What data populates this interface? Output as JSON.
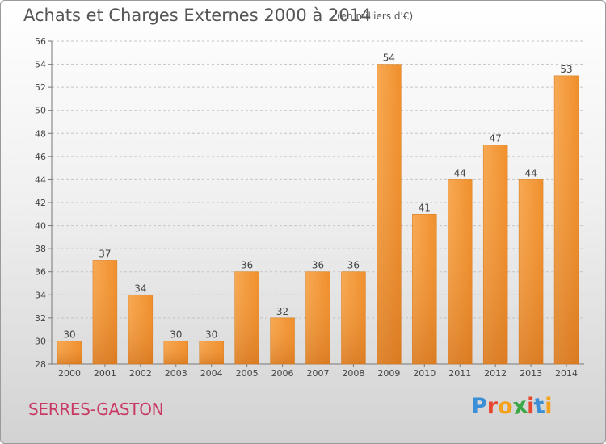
{
  "header": {
    "title": "Achats et Charges Externes 2000 à 2014",
    "unit": "(en milliers d'€)"
  },
  "footer": {
    "commune": "SERRES-GASTON",
    "logo": "Proxiti",
    "logo_colors": [
      "#3a8fd6",
      "#e8472f",
      "#f4a21c",
      "#3aa845",
      "#e8472f",
      "#3a8fd6",
      "#f4a21c"
    ]
  },
  "chart_data": {
    "type": "bar",
    "categories": [
      "2000",
      "2001",
      "2002",
      "2003",
      "2004",
      "2005",
      "2006",
      "2007",
      "2008",
      "2009",
      "2010",
      "2011",
      "2012",
      "2013",
      "2014"
    ],
    "values": [
      30,
      37,
      34,
      30,
      30,
      36,
      32,
      36,
      36,
      54,
      41,
      44,
      47,
      44,
      53
    ],
    "ylim": [
      28,
      56
    ],
    "yticks": [
      28,
      30,
      32,
      34,
      36,
      38,
      40,
      42,
      44,
      46,
      48,
      50,
      52,
      54,
      56
    ],
    "grid": true,
    "bar_color": "#f29b3c",
    "bar_color_dark": "#d97520"
  }
}
